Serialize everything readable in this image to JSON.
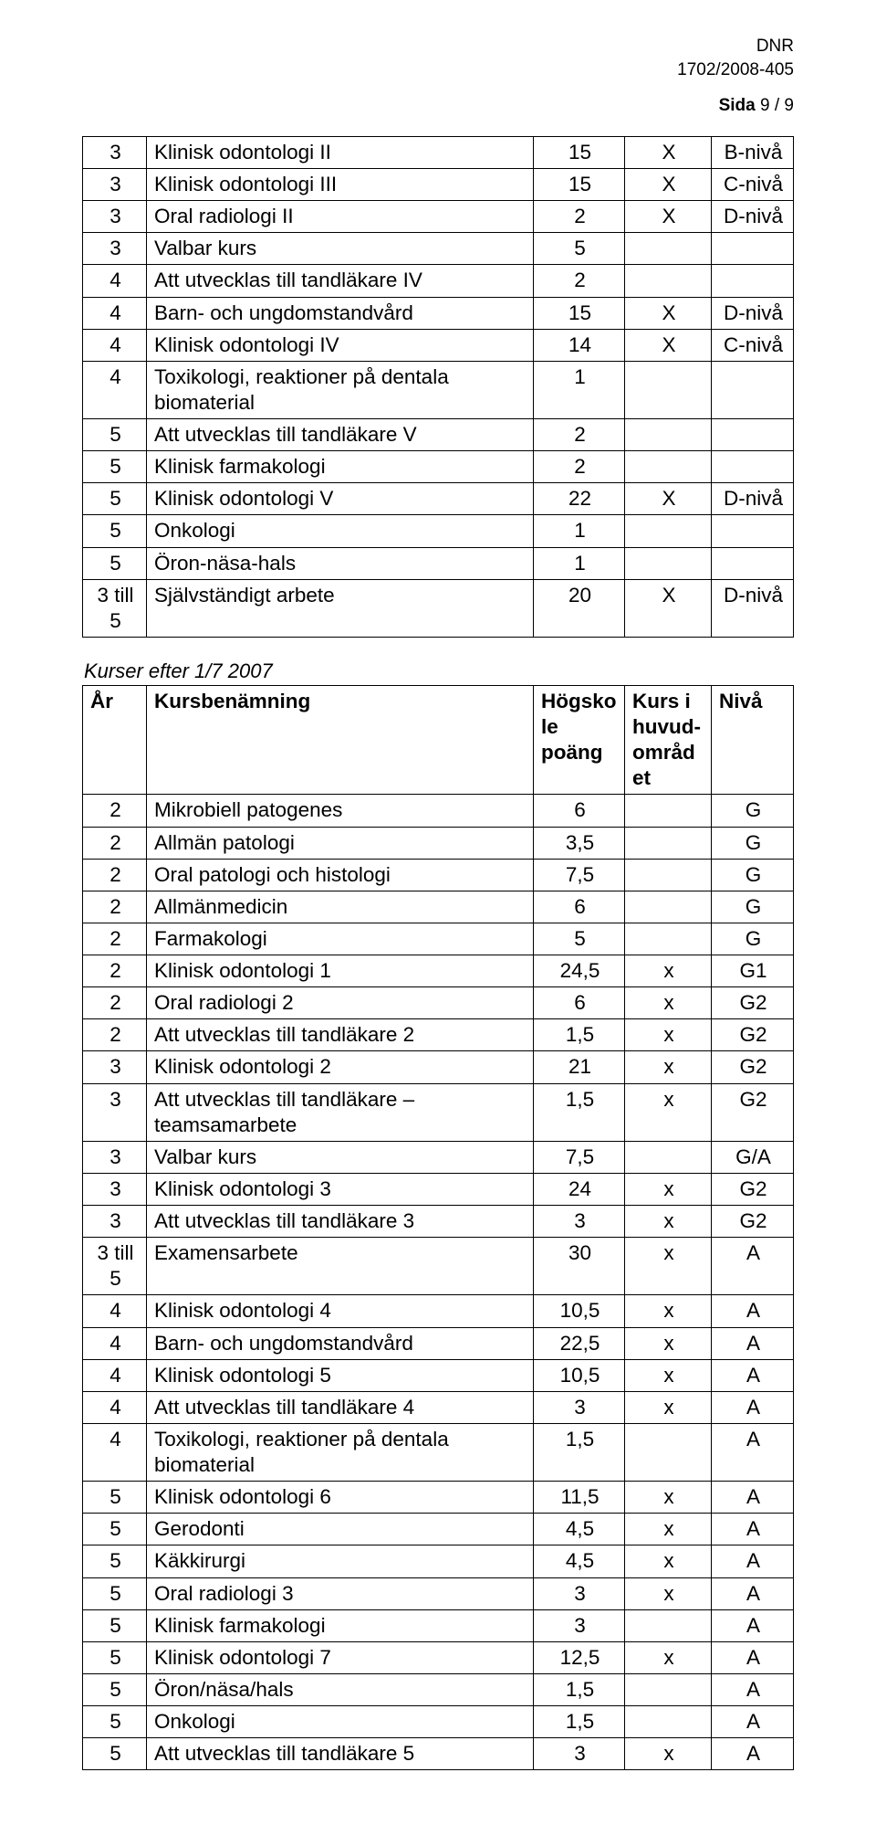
{
  "header": {
    "dnr": "DNR",
    "ref": "1702/2008-405",
    "sida_label": "Sida",
    "sida_value": "9 / 9"
  },
  "table1": {
    "rows": [
      {
        "year": "3",
        "name": "Klinisk odontologi II",
        "points": "15",
        "kurs": "X",
        "level": "B-nivå"
      },
      {
        "year": "3",
        "name": "Klinisk odontologi III",
        "points": "15",
        "kurs": "X",
        "level": "C-nivå"
      },
      {
        "year": "3",
        "name": "Oral radiologi II",
        "points": "2",
        "kurs": "X",
        "level": "D-nivå"
      },
      {
        "year": "3",
        "name": "Valbar kurs",
        "points": "5",
        "kurs": "",
        "level": ""
      },
      {
        "year": "4",
        "name": "Att utvecklas till tandläkare IV",
        "points": "2",
        "kurs": "",
        "level": ""
      },
      {
        "year": "4",
        "name": "Barn- och ungdomstandvård",
        "points": "15",
        "kurs": "X",
        "level": "D-nivå"
      },
      {
        "year": "4",
        "name": "Klinisk odontologi IV",
        "points": "14",
        "kurs": "X",
        "level": "C-nivå"
      },
      {
        "year": "4",
        "name": "Toxikologi, reaktioner på dentala biomaterial",
        "points": "1",
        "kurs": "",
        "level": ""
      },
      {
        "year": "5",
        "name": "Att utvecklas till tandläkare V",
        "points": "2",
        "kurs": "",
        "level": ""
      },
      {
        "year": "5",
        "name": "Klinisk farmakologi",
        "points": "2",
        "kurs": "",
        "level": ""
      },
      {
        "year": "5",
        "name": "Klinisk odontologi V",
        "points": "22",
        "kurs": "X",
        "level": "D-nivå"
      },
      {
        "year": "5",
        "name": "Onkologi",
        "points": "1",
        "kurs": "",
        "level": ""
      },
      {
        "year": "5",
        "name": "Öron-näsa-hals",
        "points": "1",
        "kurs": "",
        "level": ""
      },
      {
        "year": "3 till 5",
        "name": "Självständigt arbete",
        "points": "20",
        "kurs": "X",
        "level": "D-nivå"
      }
    ]
  },
  "section2_title": "Kurser efter 1/7 2007",
  "table2": {
    "headers": {
      "year": "År",
      "name": "Kursbenämning",
      "points": "Högskole\npoäng",
      "kurs": "Kurs i huvud-\nområdet",
      "level": "Nivå"
    },
    "rows": [
      {
        "year": "2",
        "name": "Mikrobiell patogenes",
        "points": "6",
        "kurs": "",
        "level": "G"
      },
      {
        "year": "2",
        "name": "Allmän patologi",
        "points": "3,5",
        "kurs": "",
        "level": "G"
      },
      {
        "year": "2",
        "name": "Oral patologi och histologi",
        "points": "7,5",
        "kurs": "",
        "level": "G"
      },
      {
        "year": "2",
        "name": "Allmänmedicin",
        "points": "6",
        "kurs": "",
        "level": "G"
      },
      {
        "year": "2",
        "name": "Farmakologi",
        "points": "5",
        "kurs": "",
        "level": "G"
      },
      {
        "year": "2",
        "name": "Klinisk odontologi 1",
        "points": "24,5",
        "kurs": "x",
        "level": "G1"
      },
      {
        "year": "2",
        "name": "Oral radiologi 2",
        "points": "6",
        "kurs": "x",
        "level": "G2"
      },
      {
        "year": "2",
        "name": "Att utvecklas till tandläkare 2",
        "points": "1,5",
        "kurs": "x",
        "level": "G2"
      },
      {
        "year": "3",
        "name": "Klinisk odontologi 2",
        "points": "21",
        "kurs": "x",
        "level": "G2"
      },
      {
        "year": "3",
        "name": "Att utvecklas till tandläkare – teamsamarbete",
        "points": "1,5",
        "kurs": "x",
        "level": "G2"
      },
      {
        "year": "3",
        "name": "Valbar kurs",
        "points": "7,5",
        "kurs": "",
        "level": "G/A"
      },
      {
        "year": "3",
        "name": "Klinisk odontologi 3",
        "points": "24",
        "kurs": "x",
        "level": "G2"
      },
      {
        "year": "3",
        "name": "Att utvecklas till tandläkare 3",
        "points": "3",
        "kurs": "x",
        "level": "G2"
      },
      {
        "year": "3 till 5",
        "name": "Examensarbete",
        "points": "30",
        "kurs": "x",
        "level": "A"
      },
      {
        "year": "4",
        "name": "Klinisk odontologi 4",
        "points": "10,5",
        "kurs": "x",
        "level": "A"
      },
      {
        "year": "4",
        "name": "Barn- och ungdomstandvård",
        "points": "22,5",
        "kurs": "x",
        "level": "A"
      },
      {
        "year": "4",
        "name": "Klinisk odontologi 5",
        "points": "10,5",
        "kurs": "x",
        "level": "A"
      },
      {
        "year": "4",
        "name": "Att utvecklas till tandläkare 4",
        "points": "3",
        "kurs": "x",
        "level": "A"
      },
      {
        "year": "4",
        "name": "Toxikologi, reaktioner på dentala biomaterial",
        "points": "1,5",
        "kurs": "",
        "level": "A"
      },
      {
        "year": "5",
        "name": "Klinisk odontologi 6",
        "points": "11,5",
        "kurs": "x",
        "level": "A"
      },
      {
        "year": "5",
        "name": "Gerodonti",
        "points": "4,5",
        "kurs": "x",
        "level": "A"
      },
      {
        "year": "5",
        "name": "Käkkirurgi",
        "points": "4,5",
        "kurs": "x",
        "level": "A"
      },
      {
        "year": "5",
        "name": "Oral radiologi 3",
        "points": "3",
        "kurs": "x",
        "level": "A"
      },
      {
        "year": "5",
        "name": "Klinisk farmakologi",
        "points": "3",
        "kurs": "",
        "level": "A"
      },
      {
        "year": "5",
        "name": "Klinisk odontologi 7",
        "points": "12,5",
        "kurs": "x",
        "level": "A"
      },
      {
        "year": "5",
        "name": "Öron/näsa/hals",
        "points": "1,5",
        "kurs": "",
        "level": "A"
      },
      {
        "year": "5",
        "name": "Onkologi",
        "points": "1,5",
        "kurs": "",
        "level": "A"
      },
      {
        "year": "5",
        "name": "Att utvecklas till tandläkare 5",
        "points": "3",
        "kurs": "x",
        "level": "A"
      }
    ]
  }
}
